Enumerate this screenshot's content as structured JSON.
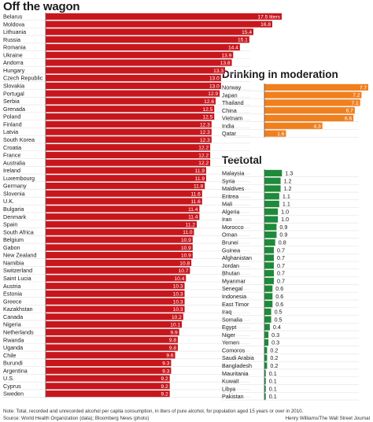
{
  "chart_data": [
    {
      "type": "bar",
      "orientation": "horizontal",
      "title": "Off the wagon",
      "color": "#c8161d",
      "categories": [
        "Belarus",
        "Moldova",
        "Lithuania",
        "Russia",
        "Romania",
        "Ukraine",
        "Andorra",
        "Hungary",
        "Czech Republic",
        "Slovakia",
        "Portugal",
        "Serbia",
        "Grenada",
        "Poland",
        "Finland",
        "Latvia",
        "South Korea",
        "Croatia",
        "France",
        "Australia",
        "Ireland",
        "Luxembourg",
        "Germany",
        "Slovenia",
        "U.K.",
        "Bulgaria",
        "Denmark",
        "Spain",
        "South Africa",
        "Belgium",
        "Gabon",
        "New Zealand",
        "Namibia",
        "Switzerland",
        "Saint Lucia",
        "Austria",
        "Estonia",
        "Greece",
        "Kazakhstan",
        "Canada",
        "Nigeria",
        "Netherlands",
        "Rwanda",
        "Uganda",
        "Chile",
        "Burundi",
        "Argentina",
        "U.S.",
        "Cyprus",
        "Sweden"
      ],
      "values": [
        17.5,
        16.8,
        15.4,
        15.1,
        14.4,
        13.9,
        13.8,
        13.3,
        13.0,
        13.0,
        12.9,
        12.6,
        12.5,
        12.5,
        12.3,
        12.3,
        12.3,
        12.2,
        12.2,
        12.2,
        11.9,
        11.9,
        11.8,
        11.6,
        11.6,
        11.4,
        11.4,
        11.2,
        11.0,
        10.9,
        10.9,
        10.9,
        10.8,
        10.7,
        10.4,
        10.3,
        10.3,
        10.3,
        10.3,
        10.2,
        10.1,
        9.9,
        9.8,
        9.8,
        9.6,
        9.3,
        9.3,
        9.2,
        9.2,
        9.2
      ],
      "value_labels": [
        "17.5 liters",
        "16.8",
        "15.4",
        "15.1",
        "14.4",
        "13.9",
        "13.8",
        "13.3",
        "13.0",
        "13.0",
        "12.9",
        "12.6",
        "12.5",
        "12.5",
        "12.3",
        "12.3",
        "12.3",
        "12.2",
        "12.2",
        "12.2",
        "11.9",
        "11.9",
        "11.8",
        "11.6",
        "11.6",
        "11.4",
        "11.4",
        "11.2",
        "11.0",
        "10.9",
        "10.9",
        "10.9",
        "10.8",
        "10.7",
        "10.4",
        "10.3",
        "10.3",
        "10.3",
        "10.3",
        "10.2",
        "10.1",
        "9.9",
        "9.8",
        "9.8",
        "9.6",
        "9.3",
        "9.3",
        "9.2",
        "9.2",
        "9.2"
      ],
      "xlim": [
        0,
        17.5
      ],
      "grid": false
    },
    {
      "type": "bar",
      "orientation": "horizontal",
      "title": "Drinking in moderation",
      "color": "#f07f1e",
      "categories": [
        "Norway",
        "Japan",
        "Thailand",
        "China",
        "Vietnam",
        "India",
        "Qatar"
      ],
      "values": [
        7.7,
        7.2,
        7.1,
        6.7,
        6.6,
        4.3,
        1.6
      ],
      "value_labels": [
        "7.7",
        "7.2",
        "7.1",
        "6.7",
        "6.6",
        "4.3",
        "1.6"
      ],
      "xlim": [
        0,
        17.5
      ],
      "grid": false
    },
    {
      "type": "bar",
      "orientation": "horizontal",
      "title": "Teetotal",
      "color": "#1e8a3a",
      "categories": [
        "Malaysia",
        "Syria",
        "Maldives",
        "Eritrea",
        "Mali",
        "Algeria",
        "Iran",
        "Morocco",
        "Oman",
        "Brunei",
        "Guinea",
        "Afghanistan",
        "Jordan",
        "Bhutan",
        "Myanmar",
        "Senegal",
        "Indonesia",
        "East Timor",
        "Iraq",
        "Somalia",
        "Egypt",
        "Niger",
        "Yemen",
        "Comoros",
        "Saudi Arabia",
        "Bangladesh",
        "Mauritania",
        "Kuwait",
        "Libya",
        "Pakistan"
      ],
      "values": [
        1.3,
        1.2,
        1.2,
        1.1,
        1.1,
        1.0,
        1.0,
        0.9,
        0.9,
        0.8,
        0.7,
        0.7,
        0.7,
        0.7,
        0.7,
        0.6,
        0.6,
        0.6,
        0.5,
        0.5,
        0.4,
        0.3,
        0.3,
        0.2,
        0.2,
        0.2,
        0.1,
        0.1,
        0.1,
        0.1
      ],
      "value_labels": [
        "1.3",
        "1.2",
        "1.2",
        "1.1",
        "1.1",
        "1.0",
        "1.0",
        "0.9",
        "0.9",
        "0.8",
        "0.7",
        "0.7",
        "0.7",
        "0.7",
        "0.7",
        "0.6",
        "0.6",
        "0.6",
        "0.5",
        "0.5",
        "0.4",
        "0.3",
        "0.3",
        "0.2",
        "0.2",
        "0.2",
        "0.1",
        "0.1",
        "0.1",
        "0.1"
      ],
      "xlim": [
        0,
        17.5
      ],
      "grid": false
    }
  ],
  "footer": {
    "note": "Note: Total, recorded and unrecorded alcohol per capita consumption, in liters of pure alcohol, for population aged 15 years or over in 2010.",
    "source": "Source: World Health Organization (data); Bloomberg News (photo)",
    "credit": "Henry Williams/The Wall Street Journal"
  }
}
